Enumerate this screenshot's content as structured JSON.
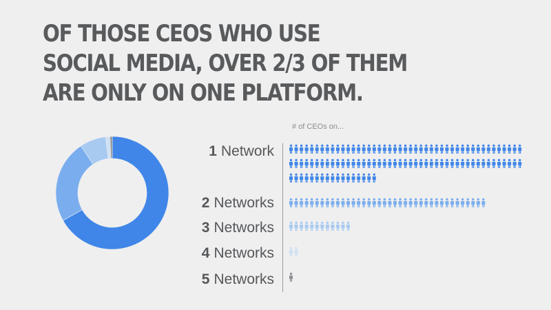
{
  "headline": {
    "lines": [
      "OF THOSE CEOs WHO USE",
      "SOCIAL MEDIA, OVER 2/3 OF THEM",
      "ARE ONLY ON ONE PLATFORM."
    ]
  },
  "colors": {
    "background": "#efeff0",
    "headline": "#585a5c",
    "series": [
      "#3f86e8",
      "#7aadee",
      "#a8caf1",
      "#cfe0f4",
      "#8e9094"
    ]
  },
  "chart_data": {
    "type": "pie",
    "subtitle": "# of CEOs on...",
    "categories": [
      {
        "num": "1",
        "word": "Network"
      },
      {
        "num": "2",
        "word": "Networks"
      },
      {
        "num": "3",
        "word": "Networks"
      },
      {
        "num": "4",
        "word": "Networks"
      },
      {
        "num": "5",
        "word": "Networks"
      }
    ],
    "values": [
      107,
      38,
      12,
      2,
      1
    ],
    "icons_per_row": 45,
    "icon": "person-icon"
  }
}
